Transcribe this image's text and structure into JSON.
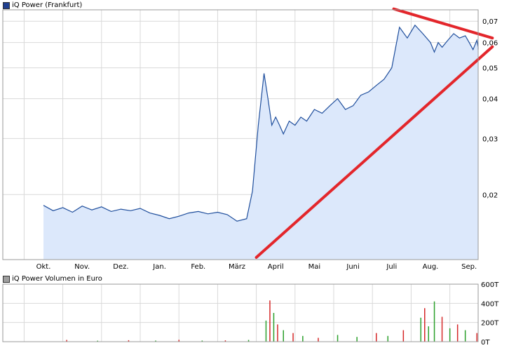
{
  "chart_data": [
    {
      "type": "area",
      "legend": "iQ Power (Frankfurt)",
      "scale": "log",
      "ylim": [
        0.0125,
        0.076
      ],
      "y_ticks": [
        {
          "value": 0.02,
          "label": "0,02"
        },
        {
          "value": 0.03,
          "label": "0,03"
        },
        {
          "value": 0.04,
          "label": "0,04"
        },
        {
          "value": 0.05,
          "label": "0,05"
        },
        {
          "value": 0.06,
          "label": "0,06"
        },
        {
          "value": 0.07,
          "label": "0,07"
        }
      ],
      "x_months": [
        "Okt.",
        "Nov.",
        "Dez.",
        "Jan.",
        "Feb.",
        "März",
        "April",
        "Mai",
        "Juni",
        "Juli",
        "Aug.",
        "Sep."
      ],
      "grid": true,
      "colors": {
        "line": "#1f4e9c",
        "fill": "#dce8fb",
        "trend": "#e3262b",
        "grid": "#d9d9d9",
        "legend_swatch": "#1f3f8f"
      },
      "x": [
        0,
        0.25,
        0.5,
        0.75,
        1,
        1.25,
        1.5,
        1.75,
        2,
        2.25,
        2.5,
        2.75,
        3,
        3.25,
        3.5,
        3.75,
        4,
        4.25,
        4.5,
        4.75,
        5,
        5.25,
        5.4,
        5.55,
        5.7,
        5.8,
        5.9,
        6,
        6.1,
        6.2,
        6.35,
        6.5,
        6.65,
        6.8,
        7,
        7.2,
        7.4,
        7.6,
        7.8,
        8,
        8.2,
        8.4,
        8.6,
        8.8,
        9,
        9.2,
        9.4,
        9.6,
        9.8,
        10,
        10.1,
        10.2,
        10.3,
        10.45,
        10.6,
        10.75,
        10.9,
        11,
        11.1,
        11.2,
        11.3,
        11.5
      ],
      "values": [
        0.0185,
        0.0178,
        0.0182,
        0.0176,
        0.0184,
        0.0179,
        0.0183,
        0.0177,
        0.018,
        0.0178,
        0.0181,
        0.0175,
        0.0172,
        0.0168,
        0.0171,
        0.0175,
        0.0177,
        0.0174,
        0.0176,
        0.0173,
        0.0165,
        0.0168,
        0.0205,
        0.033,
        0.048,
        0.04,
        0.033,
        0.035,
        0.033,
        0.031,
        0.034,
        0.033,
        0.035,
        0.034,
        0.037,
        0.036,
        0.038,
        0.04,
        0.037,
        0.038,
        0.041,
        0.042,
        0.044,
        0.046,
        0.05,
        0.067,
        0.062,
        0.068,
        0.064,
        0.06,
        0.056,
        0.06,
        0.058,
        0.061,
        0.064,
        0.062,
        0.063,
        0.06,
        0.057,
        0.061,
        0.058,
        0.057
      ],
      "trendlines": [
        {
          "from": [
            5.5,
            0.0127
          ],
          "to": [
            11.6,
            0.0582
          ]
        },
        {
          "from": [
            9.05,
            0.0765
          ],
          "to": [
            11.6,
            0.062
          ]
        }
      ]
    },
    {
      "type": "bar",
      "legend": "iQ Power Volumen in Euro",
      "ylim": [
        0,
        600
      ],
      "y_ticks": [
        {
          "value": 0,
          "label": "0T"
        },
        {
          "value": 200,
          "label": "200T"
        },
        {
          "value": 400,
          "label": "400T"
        },
        {
          "value": 600,
          "label": "600T"
        }
      ],
      "colors": {
        "up": "#2ca02c",
        "down": "#d62728",
        "legend_swatch": "#9e9e9e"
      },
      "x": [
        0.6,
        1.4,
        2.2,
        2.9,
        3.5,
        4.1,
        4.7,
        5.3,
        5.75,
        5.85,
        5.95,
        6.05,
        6.2,
        6.45,
        6.7,
        7.1,
        7.6,
        8.1,
        8.6,
        8.9,
        9.3,
        9.75,
        9.85,
        9.95,
        10.1,
        10.3,
        10.5,
        10.7,
        10.9,
        11.2
      ],
      "volumes": [
        18,
        10,
        15,
        12,
        20,
        12,
        14,
        18,
        220,
        430,
        300,
        180,
        120,
        90,
        60,
        40,
        70,
        50,
        90,
        60,
        120,
        250,
        350,
        160,
        420,
        260,
        140,
        180,
        120,
        90
      ],
      "direction": [
        "down",
        "up",
        "down",
        "up",
        "down",
        "up",
        "down",
        "up",
        "up",
        "down",
        "up",
        "down",
        "up",
        "down",
        "up",
        "down",
        "up",
        "up",
        "down",
        "up",
        "down",
        "up",
        "down",
        "up",
        "up",
        "down",
        "up",
        "down",
        "up",
        "down"
      ]
    }
  ]
}
